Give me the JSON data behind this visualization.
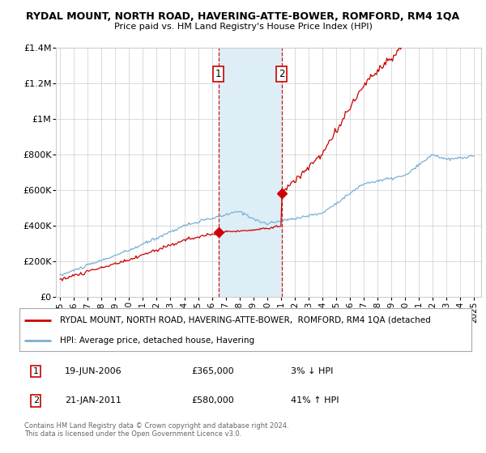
{
  "title": "RYDAL MOUNT, NORTH ROAD, HAVERING-ATTE-BOWER, ROMFORD, RM4 1QA",
  "subtitle": "Price paid vs. HM Land Registry's House Price Index (HPI)",
  "legend_line1": "RYDAL MOUNT, NORTH ROAD, HAVERING-ATTE-BOWER,  ROMFORD, RM4 1QA (detached",
  "legend_line2": "HPI: Average price, detached house, Havering",
  "sale1_date": "19-JUN-2006",
  "sale1_price": 365000,
  "sale1_label": "1",
  "sale1_hpi": "3% ↓ HPI",
  "sale2_date": "21-JAN-2011",
  "sale2_price": 580000,
  "sale2_label": "2",
  "sale2_hpi": "41% ↑ HPI",
  "footer1": "Contains HM Land Registry data © Crown copyright and database right 2024.",
  "footer2": "This data is licensed under the Open Government Licence v3.0.",
  "ylim": [
    0,
    1400000
  ],
  "yticks": [
    0,
    200000,
    400000,
    600000,
    800000,
    1000000,
    1200000,
    1400000
  ],
  "ytick_labels": [
    "£0",
    "£200K",
    "£400K",
    "£600K",
    "£800K",
    "£1M",
    "£1.2M",
    "£1.4M"
  ],
  "xlim_start": 1994.7,
  "xlim_end": 2025.5,
  "xticks": [
    1995,
    1996,
    1997,
    1998,
    1999,
    2000,
    2001,
    2002,
    2003,
    2004,
    2005,
    2006,
    2007,
    2008,
    2009,
    2010,
    2011,
    2012,
    2013,
    2014,
    2015,
    2016,
    2017,
    2018,
    2019,
    2020,
    2021,
    2022,
    2023,
    2024,
    2025
  ],
  "red_line_color": "#cc0000",
  "blue_line_color": "#7ab0d4",
  "shade_color": "#ddeef7",
  "marker_box_color": "#cc0000",
  "grid_color": "#cccccc",
  "bg_color": "#ffffff",
  "sale1_x": 2006.47,
  "sale2_x": 2011.05,
  "n_months": 361,
  "hpi_base_y": 122000,
  "red_base_y": 125000
}
